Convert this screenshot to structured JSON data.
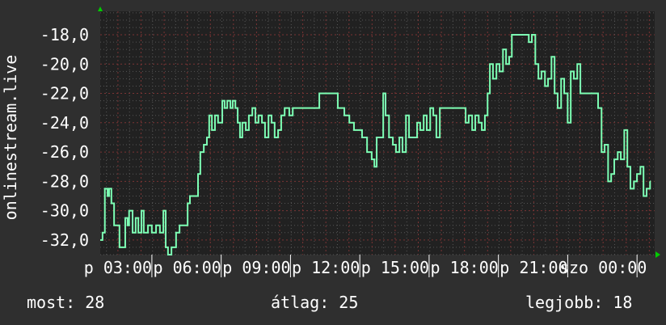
{
  "chart_data": {
    "type": "line",
    "step": true,
    "ylabel": "onlinestream.live",
    "ylim": [
      -33.0,
      -16.4
    ],
    "xlim": [
      "02:14",
      "02:14"
    ],
    "y_ticks": [
      "-18,0",
      "-20,0",
      "-22,0",
      "-24,0",
      "-26,0",
      "-28,0",
      "-30,0",
      "-32,0"
    ],
    "y_tick_values": [
      -18,
      -20,
      -22,
      -24,
      -26,
      -28,
      -30,
      -32
    ],
    "x_ticks": [
      "p 03:00",
      "p 06:00",
      "p 09:00",
      "p 12:00",
      "p 15:00",
      "p 18:00",
      "p 21:00",
      "szo 00:00"
    ],
    "x_tick_times": [
      "03:00",
      "06:00",
      "09:00",
      "12:00",
      "15:00",
      "18:00",
      "21:00",
      "00:00"
    ],
    "grid": true,
    "colors": {
      "background": "#2f2f2f",
      "plot": "#212121",
      "line": "#7dffb4",
      "major_grid": "#7a3434",
      "minor_grid": "#555555",
      "arrow": "#00cc00"
    },
    "series": [
      {
        "t": [
          "02:14",
          "02:20",
          "02:26",
          "02:33",
          "02:37",
          "02:43",
          "02:50",
          "03:00",
          "03:04",
          "03:13",
          "03:19",
          "03:25",
          "03:29",
          "03:38",
          "03:46",
          "03:53",
          "04:01",
          "04:07",
          "04:18",
          "04:28",
          "04:39",
          "04:49",
          "04:58",
          "05:04",
          "05:10",
          "05:19",
          "05:31",
          "05:40",
          "05:52",
          "06:01",
          "06:07",
          "06:22",
          "06:28",
          "06:34",
          "06:43",
          "06:51",
          "06:57",
          "07:04",
          "07:12",
          "07:20",
          "07:31",
          "07:37",
          "07:44",
          "07:52",
          "07:58",
          "08:05",
          "08:11",
          "08:17",
          "08:23",
          "08:32",
          "08:40",
          "08:49",
          "08:57",
          "09:05",
          "09:14",
          "09:22",
          "09:31",
          "09:39",
          "09:47",
          "09:56",
          "10:04",
          "10:13",
          "10:25",
          "10:34",
          "11:32",
          "11:43",
          "12:25",
          "12:31",
          "12:40",
          "12:48",
          "13:01",
          "13:13",
          "13:26",
          "13:34",
          "13:47",
          "13:59",
          "14:06",
          "14:12",
          "14:20",
          "14:29",
          "14:35",
          "14:44",
          "14:54",
          "15:02",
          "15:11",
          "15:19",
          "15:28",
          "15:36",
          "15:49",
          "15:57",
          "16:05",
          "16:14",
          "16:22",
          "16:31",
          "16:39",
          "16:47",
          "16:56",
          "17:55",
          "18:03",
          "18:11",
          "18:20",
          "18:28",
          "18:37",
          "18:45",
          "18:53",
          "19:00",
          "19:06",
          "19:14",
          "19:23",
          "19:31",
          "19:40",
          "19:48",
          "19:56",
          "20:03",
          "20:38",
          "20:47",
          "20:55",
          "21:04",
          "21:12",
          "21:20",
          "21:29",
          "21:37",
          "21:46",
          "21:54",
          "22:02",
          "22:11",
          "22:19",
          "22:28",
          "22:36",
          "22:44",
          "22:53",
          "23:01",
          "23:10",
          "23:39",
          "23:47",
          "23:56",
          "00:04",
          "00:13",
          "00:21",
          "00:29",
          "00:38",
          "00:46",
          "00:55",
          "01:03",
          "01:11",
          "01:20",
          "01:28",
          "01:37",
          "01:45",
          "01:53",
          "02:02"
        ],
        "values": [
          -32,
          -31.5,
          -28.5,
          -29,
          -28.5,
          -29.5,
          -31,
          -31,
          -32.5,
          -32.5,
          -30.5,
          -31,
          -30,
          -31.5,
          -30.5,
          -31.5,
          -30,
          -31.5,
          -31,
          -31.5,
          -31,
          -31.5,
          -30,
          -32.5,
          -33,
          -32.5,
          -31.5,
          -31,
          -31,
          -29.5,
          -29,
          -29,
          -27.5,
          -26,
          -25.5,
          -25,
          -23.5,
          -24.5,
          -23.5,
          -24,
          -22.5,
          -23,
          -22.5,
          -23,
          -22.5,
          -23,
          -24,
          -25,
          -24,
          -24.5,
          -23.5,
          -23,
          -24,
          -23.5,
          -24,
          -25,
          -23.5,
          -24,
          -25,
          -24.5,
          -23.5,
          -23,
          -23.5,
          -23,
          -23,
          -22,
          -22,
          -23,
          -23,
          -23.5,
          -24,
          -24.5,
          -24.5,
          -25,
          -26,
          -26.5,
          -27,
          -25,
          -25,
          -22,
          -23.5,
          -25,
          -25.5,
          -26,
          -25,
          -26,
          -23.5,
          -25,
          -25,
          -24,
          -24.5,
          -23.5,
          -24.5,
          -23,
          -23.5,
          -25,
          -23,
          -23,
          -24,
          -23.5,
          -24.5,
          -23.5,
          -24,
          -24.5,
          -23.5,
          -22,
          -20,
          -21,
          -20,
          -20.5,
          -19,
          -20,
          -19.5,
          -18,
          -18,
          -18.5,
          -18,
          -20,
          -21,
          -20.5,
          -21.5,
          -21,
          -19.5,
          -22,
          -23,
          -21,
          -22,
          -24,
          -20.5,
          -21,
          -20,
          -22,
          -22,
          -22,
          -23,
          -26,
          -25.5,
          -28,
          -27.5,
          -26.5,
          -26,
          -26.5,
          -24.5,
          -27,
          -28.5,
          -28,
          -27.5,
          -27,
          -29,
          -28.5,
          -28
        ]
      }
    ]
  },
  "legend": {
    "current": "most: 28",
    "average": "átlag: 25",
    "max": "legjobb: 18"
  }
}
